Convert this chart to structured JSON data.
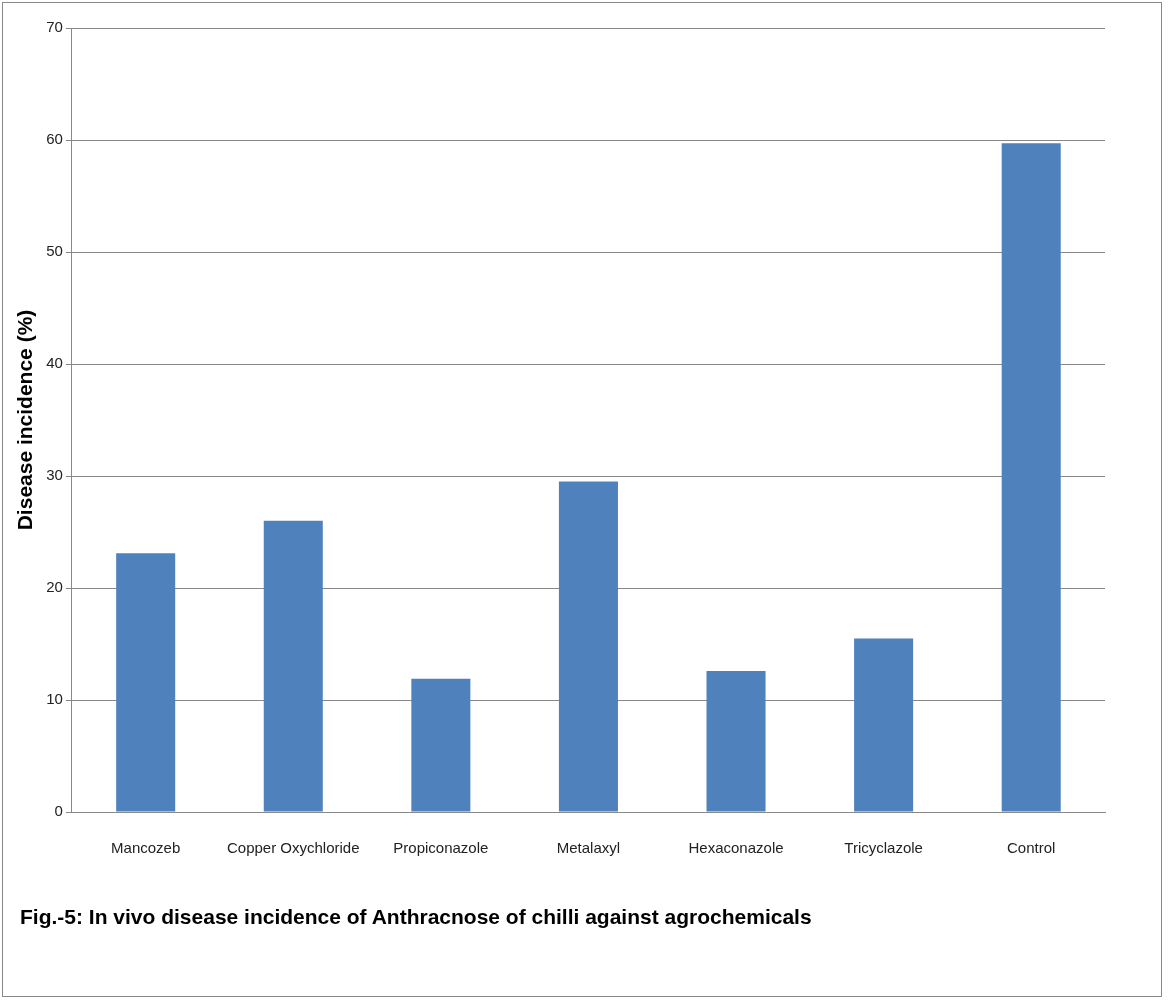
{
  "chart_data": {
    "type": "bar",
    "categories": [
      "Mancozeb",
      "Copper Oxychloride",
      "Propiconazole",
      "Metalaxyl",
      "Hexaconazole",
      "Tricyclazole",
      "Control"
    ],
    "values": [
      23.1,
      26.0,
      11.9,
      29.5,
      12.6,
      15.5,
      59.7
    ],
    "color": "#4f81bd",
    "ylabel": "Disease incidence (%)",
    "ylim": [
      0,
      70
    ],
    "yticks": [
      0,
      10,
      20,
      30,
      40,
      50,
      60,
      70
    ],
    "grid": "y",
    "annotations": [
      "Fig.-5: In vivo disease incidence of Anthracnose of chilli against agrochemicals"
    ]
  }
}
